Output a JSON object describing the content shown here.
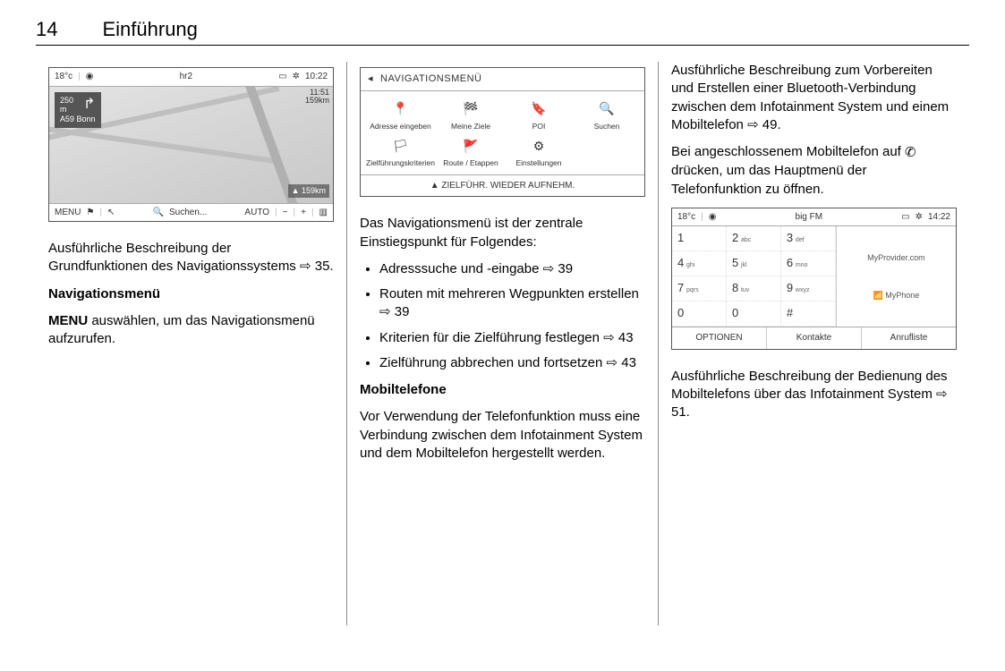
{
  "page": {
    "number": "14",
    "title": "Einführung"
  },
  "col1": {
    "nav_screenshot": {
      "temp": "18°c",
      "station": "hr2",
      "time": "10:22",
      "eta": "11:51",
      "eta_dist": "159km",
      "dist": "250 m",
      "dest": "A59 Bonn",
      "remaining": "159km",
      "bottom": {
        "menu": "MENU",
        "search": "Suchen...",
        "auto": "AUTO"
      }
    },
    "p1_a": "Ausführliche Beschreibung der Grundfunktionen des Navigationssystems ",
    "p1_b": " 35.",
    "h1": "Navigationsmenü",
    "p2_a": "MENU",
    "p2_b": " auswählen, um das Navigationsmenü aufzurufen."
  },
  "col2": {
    "menu_screenshot": {
      "title": "NAVIGATIONSMENÜ",
      "items": [
        {
          "icon": "📍",
          "label": "Adresse eingeben"
        },
        {
          "icon": "🏁",
          "label": "Meine Ziele"
        },
        {
          "icon": "🔖",
          "label": "POI"
        },
        {
          "icon": "🔍",
          "label": "Suchen"
        },
        {
          "icon": "🏳",
          "label": "Zielführungskriterien"
        },
        {
          "icon": "🚩",
          "label": "Route / Etappen"
        },
        {
          "icon": "⚙",
          "label": "Einstellungen"
        }
      ],
      "resume": "▲ ZIELFÜHR. WIEDER AUFNEHM."
    },
    "p1": "Das Navigationsmenü ist der zentrale Einstiegspunkt für Folgendes:",
    "bullets": [
      {
        "a": "Adresssuche und -eingabe ",
        "b": " 39"
      },
      {
        "a": "Routen mit mehreren Wegpunkten erstellen ",
        "b": " 39"
      },
      {
        "a": "Kriterien für die Zielführung festlegen ",
        "b": " 43"
      },
      {
        "a": "Zielführung abbrechen und fortsetzen ",
        "b": " 43"
      }
    ],
    "h2": "Mobiltelefone",
    "p2": "Vor Verwendung der Telefonfunktion muss eine Verbindung zwischen dem Infotainment System und dem Mobiltelefon hergestellt werden."
  },
  "col3": {
    "p1_a": "Ausführliche Beschreibung zum Vorbereiten und Erstellen einer Bluetooth-Verbindung zwischen dem Infotainment System und einem Mobiltelefon ",
    "p1_b": " 49.",
    "p2_a": "Bei angeschlossenem Mobiltelefon auf ",
    "p2_b": " drücken, um das Hauptmenü der Telefonfunktion zu öffnen.",
    "phone_screenshot": {
      "temp": "18°c",
      "station": "big FM",
      "time": "14:22",
      "keys": [
        {
          "d": "1",
          "s": ""
        },
        {
          "d": "2",
          "s": "abc"
        },
        {
          "d": "3",
          "s": "def"
        },
        {
          "d": "4",
          "s": "ghi"
        },
        {
          "d": "5",
          "s": "jkl"
        },
        {
          "d": "6",
          "s": "mno"
        },
        {
          "d": "7",
          "s": "pqrs"
        },
        {
          "d": "8",
          "s": "tuv"
        },
        {
          "d": "9",
          "s": "wxyz"
        },
        {
          "d": "0",
          "s": ""
        },
        {
          "d": "0",
          "s": ""
        },
        {
          "d": "#",
          "s": ""
        }
      ],
      "provider": "MyProvider.com",
      "device": "MyPhone",
      "bottom": {
        "a": "OPTIONEN",
        "b": "Kontakte",
        "c": "Anrufliste"
      }
    },
    "p3_a": "Ausführliche Beschreibung der Bedienung des Mobiltelefons über das Infotainment System ",
    "p3_b": " 51."
  },
  "glyphs": {
    "ref": "⇨",
    "phone": "✆",
    "back": "◂",
    "sep": "|",
    "gear": "✲",
    "screen": "▭",
    "signal": "📶"
  }
}
